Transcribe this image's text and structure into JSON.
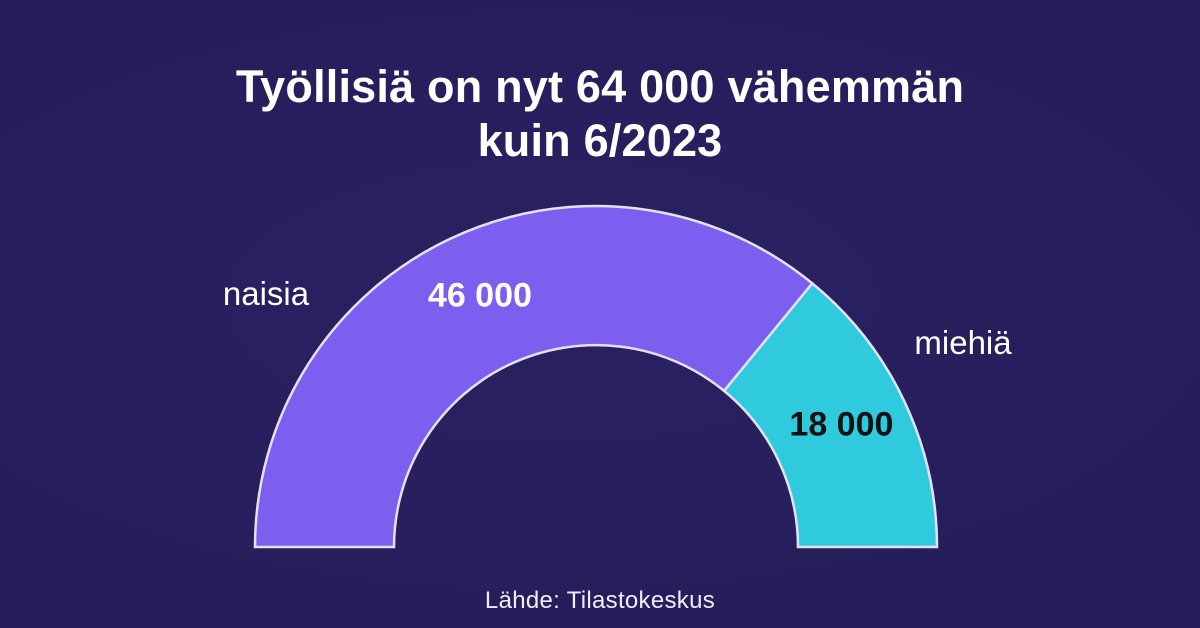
{
  "title": {
    "line1": "Työllisiä on nyt 64 000 vähemmän",
    "line2": "kuin 6/2023"
  },
  "source": "Lähde: Tilastokeskus",
  "colors": {
    "background_center": "#2a2162",
    "background_edge": "#231a54",
    "segment_outline": "#e4e1f2",
    "title_text": "#ffffff",
    "category_label_text": "#ffffff"
  },
  "chart_data": {
    "type": "pie",
    "subtype": "half-donut-gauge",
    "title": "Työllisiä on nyt 64 000 vähemmän kuin 6/2023",
    "span_degrees": 180,
    "total_value": 64000,
    "total_label": "64 000",
    "segments": [
      {
        "label": "naisia",
        "value": 46000,
        "value_label": "46 000",
        "color": "#7d5ff0",
        "value_text_color": "#ffffff"
      },
      {
        "label": "miehiä",
        "value": 18000,
        "value_label": "18 000",
        "color": "#2fcade",
        "value_text_color": "#121212"
      }
    ],
    "legend_position": "none",
    "grid": false,
    "source": "Lähde: Tilastokeskus"
  }
}
